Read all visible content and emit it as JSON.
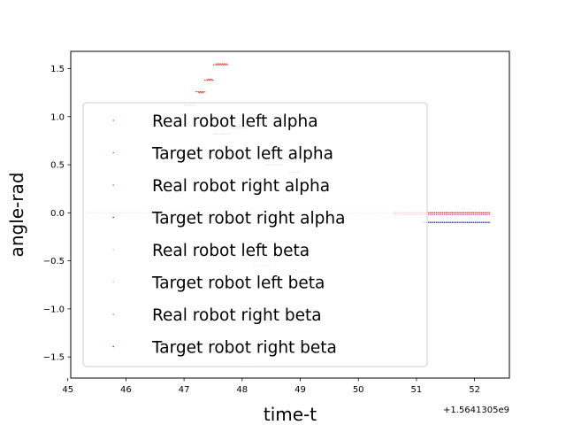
{
  "chart_data": {
    "type": "scatter",
    "xlabel": "time-t",
    "ylabel": "angle-rad",
    "xlim": [
      45.05,
      52.6
    ],
    "ylim": [
      -1.72,
      1.68
    ],
    "x_offset_label": "+1.5641305e9",
    "x_ticks": [
      45,
      46,
      47,
      48,
      49,
      50,
      51,
      52
    ],
    "y_ticks": [
      -1.5,
      -1.0,
      -0.5,
      0.0,
      0.5,
      1.0,
      1.5
    ],
    "x_tick_labels": [
      "45",
      "46",
      "47",
      "48",
      "49",
      "50",
      "51",
      "52"
    ],
    "y_tick_labels": [
      "−1.5",
      "−1.0",
      "−0.5",
      "0.0",
      "0.5",
      "1.0",
      "1.5"
    ],
    "legend_location": "center-left",
    "series": [
      {
        "name": "Real robot left alpha",
        "color": "#ff2a2a",
        "segments": [
          {
            "x": [
              47.2,
              47.35
            ],
            "y": 1.26
          },
          {
            "x": [
              47.35,
              47.5
            ],
            "y": 1.38
          },
          {
            "x": [
              47.5,
              47.75
            ],
            "y": 1.54
          },
          {
            "x": [
              47.0,
              47.2
            ],
            "y": 1.12
          },
          {
            "x": [
              45.35,
              47.0
            ],
            "y": 0.0
          }
        ]
      },
      {
        "name": "Target robot left alpha",
        "color": "#ee3333",
        "segments": [
          {
            "x": [
              47.25,
              47.35
            ],
            "y": 1.25
          },
          {
            "x": [
              47.4,
              47.5
            ],
            "y": 1.39
          },
          {
            "x": [
              47.55,
              47.75
            ],
            "y": 1.55
          }
        ]
      },
      {
        "name": "Real robot right alpha",
        "color": "#6f5ff0",
        "segments": [
          {
            "x": [
              51.1,
              52.25
            ],
            "y": -0.1
          },
          {
            "x": [
              47.5,
              47.8
            ],
            "y": 0.82
          },
          {
            "x": [
              47.8,
              48.1
            ],
            "y": 0.88
          },
          {
            "x": [
              48.4,
              48.7
            ],
            "y": 0.5
          },
          {
            "x": [
              48.8,
              49.0
            ],
            "y": 0.42
          }
        ]
      },
      {
        "name": "Target robot right alpha",
        "color": "#2020c0",
        "segments": [
          {
            "x": [
              51.1,
              52.25
            ],
            "y": -0.1
          },
          {
            "x": [
              47.8,
              48.05
            ],
            "y": 0.9
          }
        ]
      },
      {
        "name": "Real robot left beta",
        "color": "#f0a0e0",
        "segments": [
          {
            "x": [
              45.35,
              51.1
            ],
            "y": 0.0
          },
          {
            "x": [
              48.4,
              48.8
            ],
            "y": -0.3
          },
          {
            "x": [
              48.9,
              49.2
            ],
            "y": -0.62
          }
        ]
      },
      {
        "name": "Target robot left beta",
        "color": "#d0c060",
        "segments": [
          {
            "x": [
              48.2,
              48.5
            ],
            "y": -0.55
          },
          {
            "x": [
              48.0,
              48.2
            ],
            "y": -1.57
          }
        ]
      },
      {
        "name": "Real robot right beta",
        "color": "#c060b0",
        "segments": [
          {
            "x": [
              50.6,
              52.25
            ],
            "y": -0.02
          },
          {
            "x": [
              48.7,
              49.0
            ],
            "y": 0.55
          }
        ]
      },
      {
        "name": "Target robot right beta",
        "color": "#cc0000",
        "segments": [
          {
            "x": [
              50.6,
              52.25
            ],
            "y": 0.0
          }
        ]
      }
    ]
  }
}
